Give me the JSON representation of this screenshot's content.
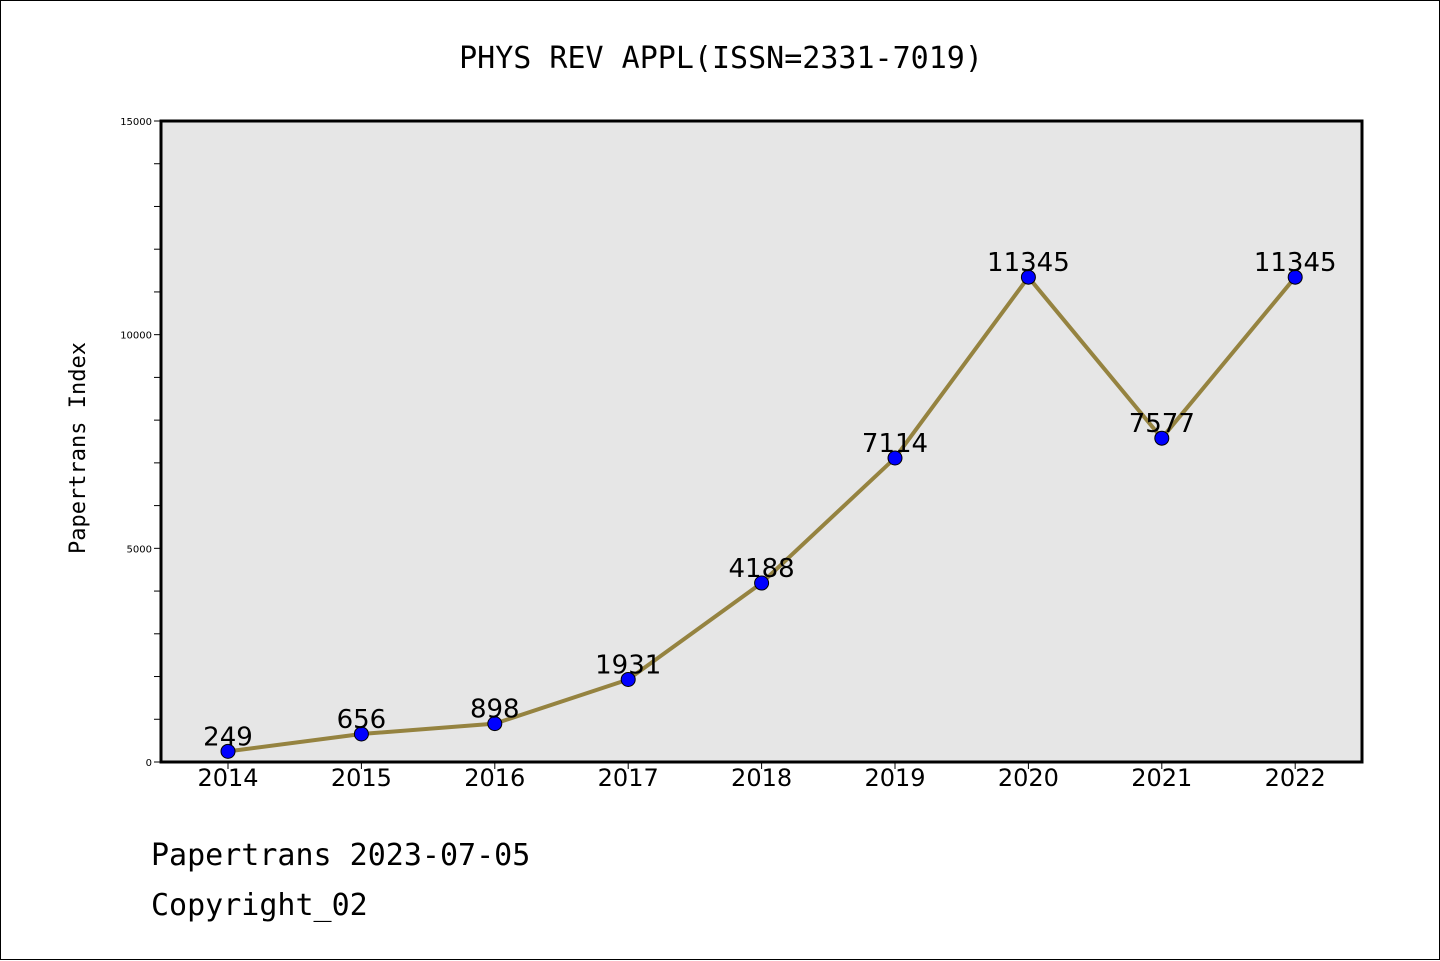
{
  "chart_data": {
    "type": "line",
    "title": "PHYS REV APPL(ISSN=2331-7019)",
    "ylabel": "Papertrans Index",
    "xlabel": "",
    "categories": [
      "2014",
      "2015",
      "2016",
      "2017",
      "2018",
      "2019",
      "2020",
      "2021",
      "2022"
    ],
    "series": [
      {
        "values": [
          249,
          656,
          898,
          1931,
          4188,
          7114,
          11345,
          7577,
          11345
        ],
        "data_labels": [
          "249",
          "656",
          "898",
          "1931",
          "4188",
          "7114",
          "11345",
          "7577",
          "11345"
        ]
      }
    ],
    "ylim": [
      0,
      15000
    ],
    "yticks": [
      {
        "value": 0,
        "label": "0"
      },
      {
        "value": 5000,
        "label": "5000"
      },
      {
        "value": 10000,
        "label": "10000"
      },
      {
        "value": 15000,
        "label": "15000"
      }
    ],
    "y_minor_step": 1000,
    "grid": false,
    "colors": {
      "line": "#958340",
      "marker": "#0000ff",
      "plot_background": "#e6e6e6",
      "axes": "#000000"
    }
  },
  "footer": {
    "line1": "Papertrans 2023-07-05",
    "line2": "Copyright_02"
  }
}
